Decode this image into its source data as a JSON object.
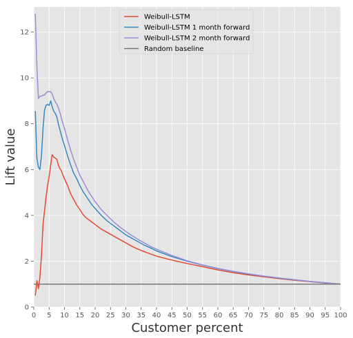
{
  "chart_data": {
    "type": "line",
    "title": "",
    "xlabel": "Customer percent",
    "ylabel": "Lift value",
    "xlim": [
      0,
      100
    ],
    "ylim": [
      0,
      13.1
    ],
    "xticks": [
      0,
      5,
      10,
      15,
      20,
      25,
      30,
      35,
      40,
      45,
      50,
      55,
      60,
      65,
      70,
      75,
      80,
      85,
      90,
      95,
      100
    ],
    "yticks": [
      0,
      2,
      4,
      6,
      8,
      10,
      12
    ],
    "grid": true,
    "legend_position": "top-center",
    "colors": {
      "background": "#e5e5e5",
      "grid": "#ffffff",
      "tick": "#555555"
    },
    "series": [
      {
        "name": "Weibull-LSTM",
        "color": "#e24a33",
        "x": [
          0.5,
          1,
          1.5,
          2,
          2.5,
          3,
          3.5,
          4,
          4.5,
          5,
          5.5,
          6,
          6.5,
          7,
          7.5,
          8,
          8.5,
          9,
          9.5,
          10,
          11,
          12,
          13,
          14,
          15,
          16,
          17,
          18,
          19,
          20,
          22,
          24,
          26,
          28,
          30,
          32,
          34,
          36,
          38,
          40,
          45,
          50,
          55,
          60,
          65,
          70,
          75,
          80,
          85,
          90,
          95,
          100
        ],
        "y": [
          0.5,
          1.15,
          0.8,
          1.3,
          2.2,
          3.6,
          4.2,
          4.8,
          5.3,
          5.7,
          6.2,
          6.65,
          6.55,
          6.5,
          6.45,
          6.2,
          6.05,
          5.95,
          5.75,
          5.6,
          5.3,
          4.95,
          4.7,
          4.45,
          4.25,
          4.05,
          3.9,
          3.8,
          3.7,
          3.6,
          3.4,
          3.25,
          3.1,
          2.95,
          2.8,
          2.65,
          2.52,
          2.42,
          2.32,
          2.22,
          2.05,
          1.9,
          1.76,
          1.62,
          1.5,
          1.4,
          1.32,
          1.24,
          1.17,
          1.11,
          1.05,
          1.0
        ]
      },
      {
        "name": "Weibull-LSTM 1 month forward",
        "color": "#348abd",
        "x": [
          0.5,
          1,
          1.5,
          2,
          2.5,
          3,
          3.5,
          4,
          4.5,
          5,
          5.5,
          6,
          6.5,
          7,
          7.5,
          8,
          8.5,
          9,
          9.5,
          10,
          11,
          12,
          13,
          14,
          15,
          16,
          17,
          18,
          19,
          20,
          22,
          24,
          26,
          28,
          30,
          32,
          34,
          36,
          38,
          40,
          45,
          50,
          55,
          60,
          65,
          70,
          75,
          80,
          85,
          90,
          95,
          100
        ],
        "y": [
          8.55,
          6.5,
          6.1,
          6.0,
          6.6,
          7.8,
          8.6,
          8.8,
          8.85,
          8.8,
          9.0,
          8.75,
          8.55,
          8.45,
          8.3,
          8.0,
          7.75,
          7.5,
          7.25,
          7.05,
          6.6,
          6.2,
          5.85,
          5.6,
          5.3,
          5.05,
          4.85,
          4.65,
          4.45,
          4.3,
          4.0,
          3.75,
          3.55,
          3.35,
          3.15,
          3.0,
          2.85,
          2.7,
          2.58,
          2.45,
          2.2,
          2.0,
          1.83,
          1.68,
          1.55,
          1.44,
          1.35,
          1.26,
          1.19,
          1.12,
          1.06,
          1.0
        ]
      },
      {
        "name": "Weibull-LSTM 2 month forward",
        "color": "#988ed5",
        "x": [
          0.5,
          1,
          1.5,
          2,
          2.5,
          3,
          3.5,
          4,
          4.5,
          5,
          5.5,
          6,
          6.5,
          7,
          7.5,
          8,
          8.5,
          9,
          9.5,
          10,
          11,
          12,
          13,
          14,
          15,
          16,
          17,
          18,
          19,
          20,
          22,
          24,
          26,
          28,
          30,
          32,
          34,
          36,
          38,
          40,
          45,
          50,
          55,
          60,
          65,
          70,
          75,
          80,
          85,
          90,
          95,
          100
        ],
        "y": [
          12.8,
          10.5,
          9.1,
          9.2,
          9.2,
          9.25,
          9.25,
          9.35,
          9.4,
          9.4,
          9.4,
          9.3,
          9.1,
          8.95,
          8.85,
          8.7,
          8.5,
          8.25,
          8.0,
          7.8,
          7.3,
          6.85,
          6.45,
          6.1,
          5.75,
          5.5,
          5.25,
          5.0,
          4.8,
          4.6,
          4.25,
          3.98,
          3.72,
          3.5,
          3.3,
          3.12,
          2.95,
          2.8,
          2.65,
          2.52,
          2.25,
          2.02,
          1.84,
          1.69,
          1.56,
          1.45,
          1.35,
          1.27,
          1.19,
          1.12,
          1.06,
          1.0
        ]
      },
      {
        "name": "Random baseline",
        "color": "#777777",
        "x": [
          0,
          100
        ],
        "y": [
          1,
          1
        ]
      }
    ]
  }
}
